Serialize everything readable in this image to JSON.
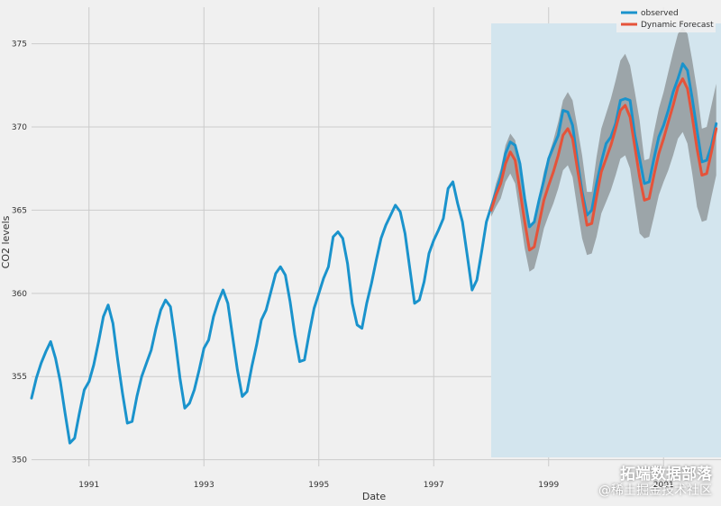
{
  "chart_data": {
    "type": "line",
    "xlabel": "Date",
    "ylabel": "CO2 levels",
    "xlim": [
      1990.0,
      2002.0
    ],
    "ylim": [
      349.6,
      377.2
    ],
    "x_ticks": [
      1991,
      1993,
      1995,
      1997,
      1999,
      2001
    ],
    "x_tick_labels": [
      "1991",
      "1993",
      "1995",
      "1997",
      "1999",
      "2001"
    ],
    "y_ticks": [
      350,
      355,
      360,
      365,
      370,
      375
    ],
    "y_tick_labels": [
      "350",
      "355",
      "360",
      "365",
      "370",
      "375"
    ],
    "grid": true,
    "legend": {
      "position": "top-right"
    },
    "forecast_region": {
      "x_start": 1998.0,
      "x_end": 2002.0,
      "color": "#d3e5ee"
    },
    "series": [
      {
        "name": "observed",
        "color": "#1a93cc",
        "x": [
          1990.0,
          1990.083,
          1990.167,
          1990.25,
          1990.333,
          1990.417,
          1990.5,
          1990.583,
          1990.667,
          1990.75,
          1990.833,
          1990.917,
          1991.0,
          1991.083,
          1991.167,
          1991.25,
          1991.333,
          1991.417,
          1991.5,
          1991.583,
          1991.667,
          1991.75,
          1991.833,
          1991.917,
          1992.0,
          1992.083,
          1992.167,
          1992.25,
          1992.333,
          1992.417,
          1992.5,
          1992.583,
          1992.667,
          1992.75,
          1992.833,
          1992.917,
          1993.0,
          1993.083,
          1993.167,
          1993.25,
          1993.333,
          1993.417,
          1993.5,
          1993.583,
          1993.667,
          1993.75,
          1993.833,
          1993.917,
          1994.0,
          1994.083,
          1994.167,
          1994.25,
          1994.333,
          1994.417,
          1994.5,
          1994.583,
          1994.667,
          1994.75,
          1994.833,
          1994.917,
          1995.0,
          1995.083,
          1995.167,
          1995.25,
          1995.333,
          1995.417,
          1995.5,
          1995.583,
          1995.667,
          1995.75,
          1995.833,
          1995.917,
          1996.0,
          1996.083,
          1996.167,
          1996.25,
          1996.333,
          1996.417,
          1996.5,
          1996.583,
          1996.667,
          1996.75,
          1996.833,
          1996.917,
          1997.0,
          1997.083,
          1997.167,
          1997.25,
          1997.333,
          1997.417,
          1997.5,
          1997.583,
          1997.667,
          1997.75,
          1997.833,
          1997.917,
          1998.0,
          1998.083,
          1998.167,
          1998.25,
          1998.333,
          1998.417,
          1998.5,
          1998.583,
          1998.667,
          1998.75,
          1998.833,
          1998.917,
          1999.0,
          1999.083,
          1999.167,
          1999.25,
          1999.333,
          1999.417,
          1999.5,
          1999.583,
          1999.667,
          1999.75,
          1999.833,
          1999.917,
          2000.0,
          2000.083,
          2000.167,
          2000.25,
          2000.333,
          2000.417,
          2000.5,
          2000.583,
          2000.667,
          2000.75,
          2000.833,
          2000.917,
          2001.0,
          2001.083,
          2001.167,
          2001.25,
          2001.333,
          2001.417,
          2001.5,
          2001.583,
          2001.667,
          2001.75,
          2001.833,
          2001.917
        ],
        "y": [
          353.7,
          354.9,
          355.8,
          356.5,
          357.1,
          356.1,
          354.7,
          352.8,
          351.0,
          351.3,
          352.8,
          354.2,
          354.7,
          355.7,
          357.1,
          358.6,
          359.3,
          358.2,
          356.0,
          354.0,
          352.2,
          352.3,
          353.8,
          355.0,
          355.8,
          356.6,
          357.9,
          359.0,
          359.6,
          359.2,
          357.2,
          354.9,
          353.1,
          353.4,
          354.2,
          355.4,
          356.7,
          357.2,
          358.6,
          359.5,
          360.2,
          359.4,
          357.4,
          355.4,
          353.8,
          354.1,
          355.6,
          356.9,
          358.4,
          359.0,
          360.1,
          361.2,
          361.6,
          361.1,
          359.5,
          357.5,
          355.9,
          356.0,
          357.6,
          359.1,
          360.0,
          360.9,
          361.6,
          363.4,
          363.7,
          363.3,
          361.8,
          359.4,
          358.1,
          357.9,
          359.4,
          360.6,
          362.0,
          363.3,
          364.1,
          364.7,
          365.3,
          364.9,
          363.6,
          361.5,
          359.4,
          359.6,
          360.7,
          362.4,
          363.2,
          363.8,
          364.5,
          366.3,
          366.7,
          365.4,
          364.3,
          362.3,
          360.2,
          360.8,
          362.5,
          364.3,
          365.2,
          366.1,
          367.0,
          368.4,
          369.1,
          368.9,
          367.8,
          365.7,
          364.0,
          364.3,
          365.6,
          366.8,
          368.1,
          368.8,
          369.5,
          371.0,
          370.9,
          370.1,
          368.0,
          366.1,
          364.7,
          365.0,
          366.6,
          367.9,
          369.0,
          369.4,
          370.2,
          371.6,
          371.7,
          371.6,
          369.5,
          368.1,
          366.6,
          366.7,
          368.1,
          369.4,
          370.1,
          371.0,
          372.1,
          372.9,
          373.8,
          373.4,
          371.7,
          369.8,
          367.9,
          368.0,
          368.9,
          370.2
        ]
      },
      {
        "name": "Dynamic Forecast",
        "color": "#e5533a",
        "x": [
          1998.0,
          1998.083,
          1998.167,
          1998.25,
          1998.333,
          1998.417,
          1998.5,
          1998.583,
          1998.667,
          1998.75,
          1998.833,
          1998.917,
          1999.0,
          1999.083,
          1999.167,
          1999.25,
          1999.333,
          1999.417,
          1999.5,
          1999.583,
          1999.667,
          1999.75,
          1999.833,
          1999.917,
          2000.0,
          2000.083,
          2000.167,
          2000.25,
          2000.333,
          2000.417,
          2000.5,
          2000.583,
          2000.667,
          2000.75,
          2000.833,
          2000.917,
          2001.0,
          2001.083,
          2001.167,
          2001.25,
          2001.333,
          2001.417,
          2001.5,
          2001.583,
          2001.667,
          2001.75,
          2001.833,
          2001.917
        ],
        "y": [
          365.0,
          365.9,
          366.6,
          367.8,
          368.5,
          368.0,
          366.2,
          364.3,
          362.6,
          362.8,
          364.2,
          365.6,
          366.5,
          367.3,
          368.3,
          369.5,
          369.9,
          369.3,
          367.5,
          365.8,
          364.1,
          364.2,
          365.8,
          367.3,
          368.1,
          368.9,
          369.9,
          371.0,
          371.3,
          370.6,
          368.8,
          367.0,
          365.6,
          365.7,
          367.1,
          368.4,
          369.3,
          370.3,
          371.3,
          372.4,
          372.9,
          372.3,
          370.6,
          368.7,
          367.1,
          367.2,
          368.5,
          369.9
        ]
      }
    ],
    "confidence_interval": {
      "color": "#8e9597",
      "x": [
        1998.0,
        1998.083,
        1998.167,
        1998.25,
        1998.333,
        1998.417,
        1998.5,
        1998.583,
        1998.667,
        1998.75,
        1998.833,
        1998.917,
        1999.0,
        1999.083,
        1999.167,
        1999.25,
        1999.333,
        1999.417,
        1999.5,
        1999.583,
        1999.667,
        1999.75,
        1999.833,
        1999.917,
        2000.0,
        2000.083,
        2000.167,
        2000.25,
        2000.333,
        2000.417,
        2000.5,
        2000.583,
        2000.667,
        2000.75,
        2000.833,
        2000.917,
        2001.0,
        2001.083,
        2001.167,
        2001.25,
        2001.333,
        2001.417,
        2001.5,
        2001.583,
        2001.667,
        2001.75,
        2001.833,
        2001.917
      ],
      "lower": [
        364.6,
        365.2,
        365.7,
        366.7,
        367.2,
        366.6,
        364.7,
        362.7,
        361.3,
        361.5,
        362.6,
        363.9,
        364.7,
        365.4,
        366.3,
        367.4,
        367.7,
        367.0,
        365.1,
        363.3,
        362.3,
        362.4,
        363.4,
        364.8,
        365.5,
        366.2,
        367.1,
        368.1,
        368.3,
        367.5,
        365.5,
        363.6,
        363.3,
        363.4,
        364.6,
        365.9,
        366.7,
        367.4,
        368.3,
        369.3,
        369.7,
        369.0,
        367.2,
        365.2,
        364.3,
        364.4,
        365.8,
        367.1
      ],
      "upper": [
        365.4,
        366.6,
        367.5,
        368.9,
        369.6,
        369.2,
        367.6,
        365.9,
        364.1,
        364.3,
        365.8,
        367.3,
        368.3,
        369.2,
        370.3,
        371.6,
        372.1,
        371.6,
        370.0,
        368.3,
        366.1,
        366.1,
        368.2,
        369.9,
        370.8,
        371.7,
        372.8,
        374.0,
        374.4,
        373.7,
        372.1,
        370.4,
        368.0,
        368.1,
        369.7,
        371.1,
        372.1,
        373.3,
        374.5,
        375.6,
        376.0,
        375.6,
        374.0,
        372.2,
        369.9,
        370.0,
        371.3,
        372.6
      ]
    }
  },
  "watermark": {
    "line1": "拓端数据部落",
    "line2": "@稀土掘金技术社区"
  }
}
